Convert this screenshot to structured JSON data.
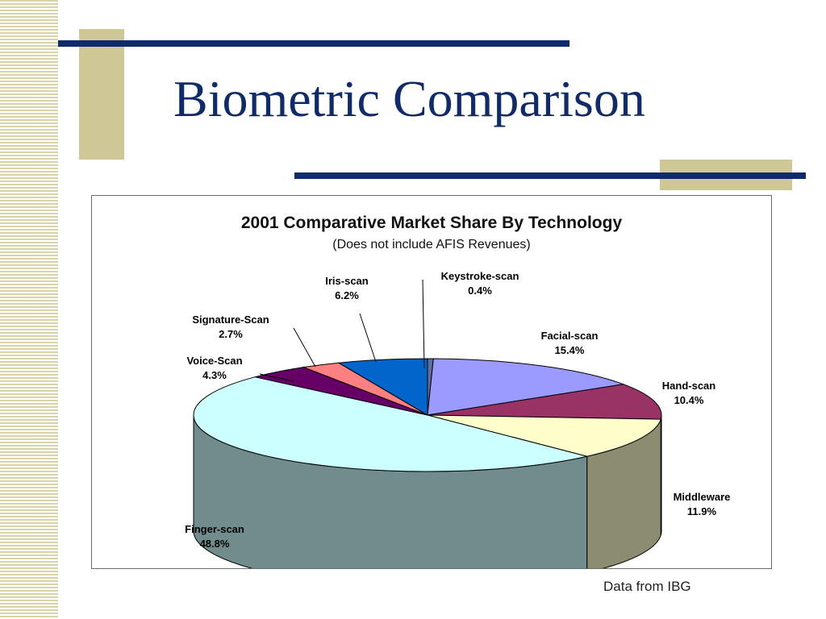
{
  "slide": {
    "title": "Biometric Comparison",
    "source_note": "Data from IBG"
  },
  "theme": {
    "title_color": "#0f2b6b",
    "accent_line": "#0f2b6b",
    "accent_block": "#cfc796"
  },
  "chart_data": {
    "type": "pie",
    "title": "2001 Comparative Market Share By Technology",
    "subtitle": "(Does not include AFIS Revenues)",
    "style": "3d",
    "slices": [
      {
        "label": "Keystroke-scan",
        "value_label": "0.4%",
        "value": 0.4,
        "color": "#5f6f9e"
      },
      {
        "label": "Facial-scan",
        "value_label": "15.4%",
        "value": 15.4,
        "color": "#9a9aff"
      },
      {
        "label": "Hand-scan",
        "value_label": "10.4%",
        "value": 10.4,
        "color": "#993366"
      },
      {
        "label": "Middleware",
        "value_label": "11.9%",
        "value": 11.9,
        "color": "#ffffcc"
      },
      {
        "label": "Finger-scan",
        "value_label": "48.8%",
        "value": 48.8,
        "color": "#ccffff"
      },
      {
        "label": "Voice-Scan",
        "value_label": "4.3%",
        "value": 4.3,
        "color": "#660066"
      },
      {
        "label": "Signature-Scan",
        "value_label": "2.7%",
        "value": 2.7,
        "color": "#ff8080"
      },
      {
        "label": "Iris-scan",
        "value_label": "6.2%",
        "value": 6.2,
        "color": "#0066cc"
      }
    ]
  }
}
